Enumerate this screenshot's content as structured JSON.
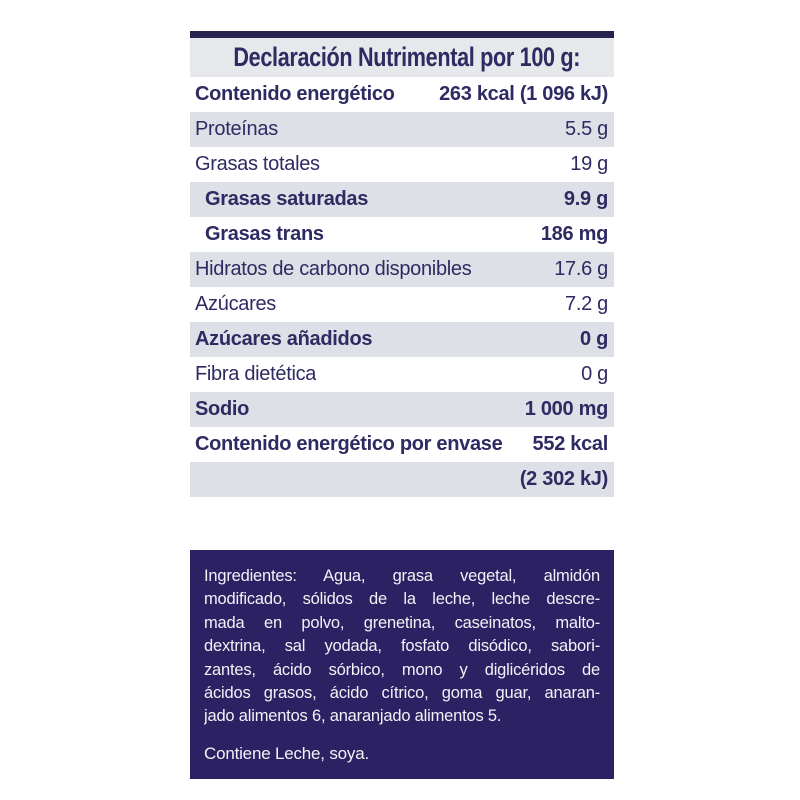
{
  "title": "Declaración Nutrimental por 100 g:",
  "table": {
    "rows": [
      {
        "label": "Contenido energético",
        "value": "263 kcal (1 096 kJ)"
      },
      {
        "label": "Proteínas",
        "value": "5.5 g"
      },
      {
        "label": "Grasas totales",
        "value": "19 g"
      },
      {
        "label": "Grasas saturadas",
        "value": "9.9 g"
      },
      {
        "label": "Grasas trans",
        "value": "186 mg"
      },
      {
        "label": "Hidratos de carbono disponibles",
        "value": "17.6 g"
      },
      {
        "label": "Azúcares",
        "value": "7.2 g"
      },
      {
        "label": "Azúcares añadidos",
        "value": "0 g"
      },
      {
        "label": "Fibra dietética",
        "value": "0 g"
      },
      {
        "label": "Sodio",
        "value": "1 000 mg"
      },
      {
        "label": "Contenido energético por envase",
        "value": "552 kcal"
      },
      {
        "label": "",
        "value": "(2 302 kJ)"
      }
    ]
  },
  "ingredients": {
    "lines": [
      "Ingredientes: Agua, grasa vegetal, almidón",
      "modificado, sólidos de la leche, leche descre-",
      "mada en polvo, grenetina, caseinatos, malto-",
      "dextrina, sal yodada, fosfato disódico, sabori-",
      "zantes, ácido sórbico, mono y diglicéridos de",
      "ácidos grasos, ácido cítrico, goma guar, anaran-",
      "jado alimentos 6, anaranjado alimentos 5."
    ],
    "allergen_statement": "Contiene Leche, soya."
  },
  "colors": {
    "navy_text": "#2e2a62",
    "top_bar": "#272350",
    "row_shade": "#dde0e6",
    "title_shade": "#e6e8ec",
    "ingredients_box_bg": "#2c2162",
    "ingredients_box_text": "#f3f1f7",
    "page_bg": "#ffffff"
  }
}
